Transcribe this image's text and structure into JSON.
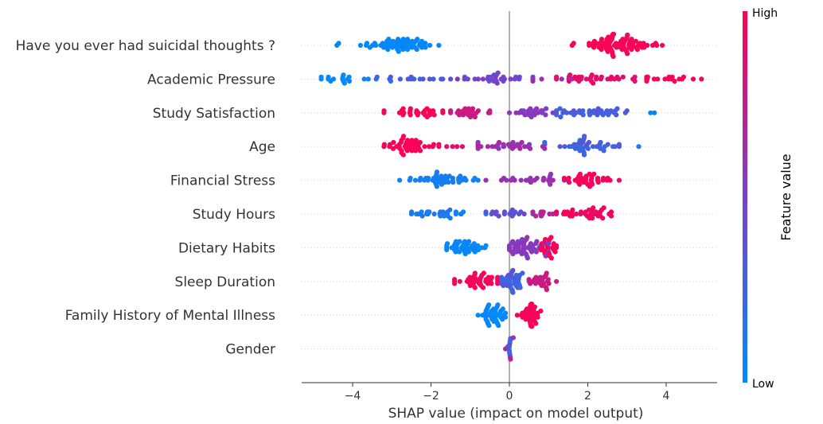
{
  "chart_data": {
    "type": "scatter",
    "subtype": "shap-beeswarm",
    "xlabel": "SHAP value (impact on model output)",
    "xlim": [
      -5.3,
      5.3
    ],
    "xticks": [
      -4,
      -2,
      0,
      2,
      4
    ],
    "grid": false,
    "colorbar": {
      "label": "Feature value",
      "high_label": "High",
      "low_label": "Low",
      "high_color": "#ff0052",
      "low_color": "#008bfb"
    },
    "features": [
      {
        "name": "Have you ever had suicidal thoughts ?",
        "groups": [
          {
            "min": -4.4,
            "max": -1.8,
            "center": -2.9,
            "spread": 0.55,
            "count": 60,
            "v0": 0.0,
            "v1": 0.05
          },
          {
            "min": 1.6,
            "max": 3.9,
            "center": 2.7,
            "spread": 0.45,
            "count": 80,
            "v0": 0.95,
            "v1": 1.0
          }
        ]
      },
      {
        "name": "Academic Pressure",
        "groups": [
          {
            "min": -4.8,
            "max": -3.6,
            "center": -4.2,
            "spread": 0.3,
            "count": 16,
            "v0": 0.0,
            "v1": 0.05
          },
          {
            "min": -3.4,
            "max": -1.7,
            "center": -2.5,
            "spread": 0.45,
            "count": 16,
            "v0": 0.2,
            "v1": 0.35
          },
          {
            "min": -1.5,
            "max": 0.6,
            "center": -0.4,
            "spread": 0.5,
            "count": 32,
            "v0": 0.4,
            "v1": 0.55
          },
          {
            "min": 0.6,
            "max": 1.6,
            "center": 1.2,
            "spread": 0.3,
            "count": 6,
            "v0": 0.6,
            "v1": 0.7
          },
          {
            "min": 1.2,
            "max": 3.2,
            "center": 2.2,
            "spread": 0.5,
            "count": 30,
            "v0": 0.85,
            "v1": 0.95
          },
          {
            "min": 3.5,
            "max": 4.9,
            "center": 4.2,
            "spread": 0.4,
            "count": 18,
            "v0": 0.95,
            "v1": 1.0
          }
        ]
      },
      {
        "name": "Study Satisfaction",
        "groups": [
          {
            "min": -3.2,
            "max": -1.7,
            "center": -2.4,
            "spread": 0.35,
            "count": 28,
            "v0": 0.95,
            "v1": 1.0
          },
          {
            "min": -1.5,
            "max": -0.5,
            "center": -1.0,
            "spread": 0.25,
            "count": 24,
            "v0": 0.75,
            "v1": 0.85
          },
          {
            "min": 0.0,
            "max": 1.2,
            "center": 0.6,
            "spread": 0.3,
            "count": 24,
            "v0": 0.5,
            "v1": 0.6
          },
          {
            "min": 1.2,
            "max": 3.0,
            "center": 2.0,
            "spread": 0.45,
            "count": 38,
            "v0": 0.25,
            "v1": 0.35
          },
          {
            "min": 3.6,
            "max": 3.7,
            "center": 3.65,
            "spread": 0.02,
            "count": 2,
            "v0": 0.0,
            "v1": 0.1
          }
        ]
      },
      {
        "name": "Age",
        "groups": [
          {
            "min": -3.2,
            "max": -1.8,
            "center": -2.5,
            "spread": 0.3,
            "count": 46,
            "v0": 0.95,
            "v1": 1.0
          },
          {
            "min": -1.6,
            "max": -0.8,
            "center": -1.2,
            "spread": 0.2,
            "count": 6,
            "v0": 0.85,
            "v1": 0.9
          },
          {
            "min": -0.8,
            "max": 0.9,
            "center": 0.0,
            "spread": 0.45,
            "count": 30,
            "v0": 0.55,
            "v1": 0.7
          },
          {
            "min": 0.9,
            "max": 2.8,
            "center": 1.8,
            "spread": 0.5,
            "count": 40,
            "v0": 0.2,
            "v1": 0.35
          },
          {
            "min": 3.3,
            "max": 3.3,
            "center": 3.3,
            "spread": 0.01,
            "count": 1,
            "v0": 0.15,
            "v1": 0.15
          }
        ]
      },
      {
        "name": "Financial Stress",
        "groups": [
          {
            "min": -2.8,
            "max": -0.8,
            "center": -1.8,
            "spread": 0.5,
            "count": 44,
            "v0": 0.05,
            "v1": 0.12
          },
          {
            "min": -0.6,
            "max": 1.4,
            "center": 0.4,
            "spread": 0.45,
            "count": 24,
            "v0": 0.55,
            "v1": 0.65
          },
          {
            "min": 1.4,
            "max": 2.8,
            "center": 2.0,
            "spread": 0.3,
            "count": 36,
            "v0": 0.93,
            "v1": 1.0
          }
        ]
      },
      {
        "name": "Study Hours",
        "groups": [
          {
            "min": -2.5,
            "max": -0.6,
            "center": -1.7,
            "spread": 0.45,
            "count": 28,
            "v0": 0.05,
            "v1": 0.15
          },
          {
            "min": -0.6,
            "max": 0.6,
            "center": 0.0,
            "spread": 0.3,
            "count": 18,
            "v0": 0.35,
            "v1": 0.45
          },
          {
            "min": 0.6,
            "max": 1.2,
            "center": 0.9,
            "spread": 0.15,
            "count": 10,
            "v0": 0.65,
            "v1": 0.75
          },
          {
            "min": 1.2,
            "max": 2.6,
            "center": 1.9,
            "spread": 0.35,
            "count": 36,
            "v0": 0.9,
            "v1": 1.0
          }
        ]
      },
      {
        "name": "Dietary Habits",
        "groups": [
          {
            "min": -1.6,
            "max": -0.6,
            "center": -1.2,
            "spread": 0.25,
            "count": 40,
            "v0": 0.0,
            "v1": 0.05
          },
          {
            "min": 0.0,
            "max": 1.0,
            "center": 0.5,
            "spread": 0.25,
            "count": 50,
            "v0": 0.5,
            "v1": 0.6
          },
          {
            "min": 0.8,
            "max": 1.2,
            "center": 1.0,
            "spread": 0.1,
            "count": 24,
            "v0": 0.95,
            "v1": 1.0
          }
        ]
      },
      {
        "name": "Sleep Duration",
        "groups": [
          {
            "min": -1.4,
            "max": -0.3,
            "center": -0.8,
            "spread": 0.25,
            "count": 40,
            "v0": 0.93,
            "v1": 1.0
          },
          {
            "min": -0.2,
            "max": 0.5,
            "center": 0.1,
            "spread": 0.15,
            "count": 40,
            "v0": 0.2,
            "v1": 0.4
          },
          {
            "min": 0.5,
            "max": 1.2,
            "center": 0.8,
            "spread": 0.15,
            "count": 24,
            "v0": 0.75,
            "v1": 0.85
          }
        ]
      },
      {
        "name": "Family History of Mental Illness",
        "groups": [
          {
            "min": -0.8,
            "max": -0.1,
            "center": -0.4,
            "spread": 0.15,
            "count": 40,
            "v0": 0.0,
            "v1": 0.05
          },
          {
            "min": 0.2,
            "max": 0.8,
            "center": 0.5,
            "spread": 0.12,
            "count": 40,
            "v0": 0.95,
            "v1": 1.0
          }
        ]
      },
      {
        "name": "Gender",
        "groups": [
          {
            "min": -0.1,
            "max": 0.1,
            "center": 0.0,
            "spread": 0.03,
            "count": 14,
            "v0": 0.05,
            "v1": 0.95
          }
        ]
      }
    ]
  }
}
